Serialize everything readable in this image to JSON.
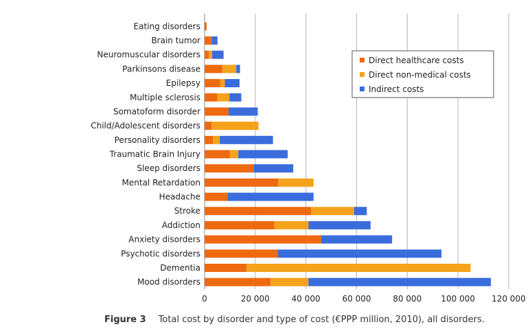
{
  "chart_data": {
    "type": "bar",
    "orientation": "horizontal",
    "stacked": true,
    "categories": [
      "Eating disorders",
      "Brain tumor",
      "Neuromuscular disorders",
      "Parkinsons disease",
      "Epilepsy",
      "Multiple sclerosis",
      "Somatoform disorder",
      "Child/Adolescent disorders",
      "Personality disorders",
      "Traumatic Brain Injury",
      "Sleep disorders",
      "Mental Retardation",
      "Headache",
      "Stroke",
      "Addiction",
      "Anxiety disorders",
      "Psychotic disorders",
      "Dementia",
      "Mood disorders"
    ],
    "series": [
      {
        "name": "Direct healthcare costs",
        "color": "#ee6a10",
        "values": [
          800,
          2800,
          1700,
          7000,
          6200,
          5000,
          9500,
          2800,
          3300,
          10000,
          19500,
          29000,
          9000,
          42000,
          27500,
          46000,
          29000,
          16500,
          26000
        ]
      },
      {
        "name": "Direct non-medical costs",
        "color": "#f5a21c",
        "values": [
          0,
          0,
          1300,
          5500,
          1800,
          4800,
          0,
          18500,
          2700,
          3300,
          0,
          14000,
          0,
          17000,
          13500,
          0,
          0,
          88500,
          15000
        ]
      },
      {
        "name": "Indirect costs",
        "color": "#3a6cdc",
        "values": [
          0,
          2300,
          4500,
          1500,
          5800,
          4700,
          11500,
          0,
          21000,
          19500,
          15500,
          0,
          34000,
          5000,
          24500,
          28000,
          64500,
          0,
          72000
        ]
      }
    ],
    "xlim": [
      0,
      120000
    ],
    "xticks": [
      0,
      20000,
      40000,
      60000,
      80000,
      100000,
      120000
    ],
    "xtick_labels": [
      "0",
      "20 000",
      "40 000",
      "60 000",
      "80 000",
      "100 000",
      "120 000"
    ],
    "xlabel": "",
    "ylabel": "",
    "grid": "vertical",
    "legend_position": "top-right"
  },
  "caption": {
    "figure_label": "Figure 3",
    "text": "Total cost by disorder and type of cost (€PPP million, 2010), all disorders."
  }
}
